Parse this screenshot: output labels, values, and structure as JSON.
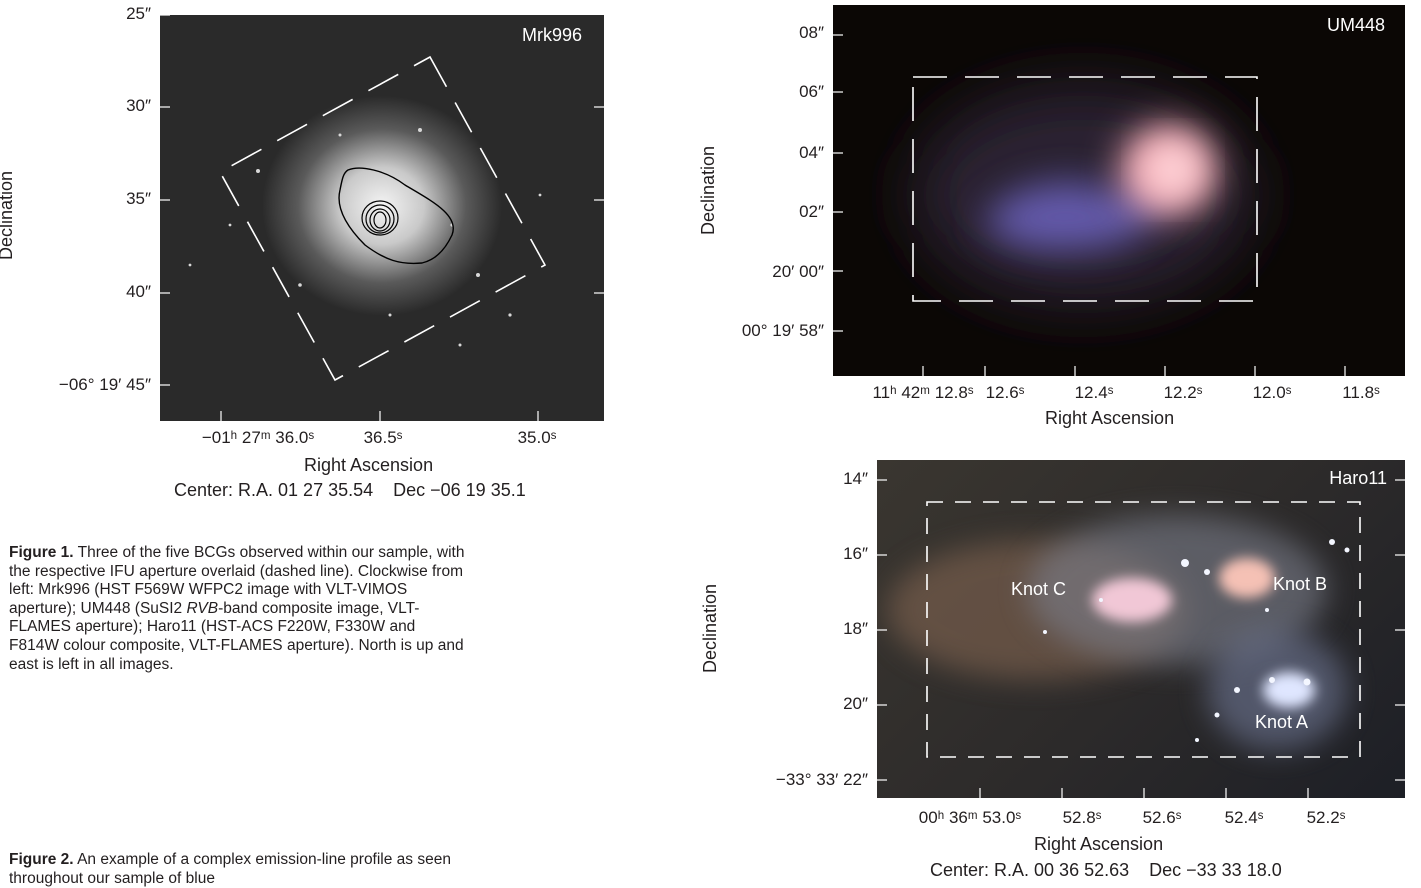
{
  "figure1": {
    "mrk996": {
      "label": "Mrk996",
      "ylabel": "Declination",
      "yticks": [
        "25″",
        "30″",
        "35″",
        "40″",
        "−06° 19′ 45″"
      ],
      "xticks": [
        "−01ʰ 27ᵐ 36.0ˢ",
        "36.5ˢ",
        "35.0ˢ"
      ],
      "xlabel": "Right Ascension",
      "center": "Center: R.A. 01 27 35.54    Dec −06 19 35.1"
    },
    "um448": {
      "label": "UM448",
      "ylabel": "Declination",
      "yticks": [
        "08″",
        "06″",
        "04″",
        "02″",
        "20′ 00″",
        "00° 19′ 58″"
      ],
      "xticks": [
        "11ʰ 42ᵐ 12.8ˢ",
        "12.6ˢ",
        "12.4ˢ",
        "12.2ˢ",
        "12.0ˢ",
        "11.8ˢ"
      ],
      "xlabel": "Right Ascension"
    },
    "haro11": {
      "label": "Haro11",
      "ylabel": "Declination",
      "yticks": [
        "14″",
        "16″",
        "18″",
        "20″",
        "−33° 33′ 22″"
      ],
      "xticks": [
        "00ʰ 36ᵐ 53.0ˢ",
        "52.8ˢ",
        "52.6ˢ",
        "52.4ˢ",
        "52.2ˢ"
      ],
      "xlabel": "Right Ascension",
      "center": "Center: R.A. 00 36 52.63    Dec −33 33 18.0",
      "knots": [
        "Knot C",
        "Knot B",
        "Knot A"
      ]
    }
  },
  "captions": {
    "fig1_label": "Figure 1.",
    "fig1_text_a": "Three of the five BCGs observed within our sample, with the respective IFU aperture overlaid (dashed line). Clockwise from left: Mrk996 (HST F569W WFPC2 image with VLT-VIMOS aperture); UM448 (SuSI2",
    "fig1_italic": "RVB",
    "fig1_text_b": "-band composite image, VLT-FLAMES aperture); Haro11 (HST-ACS F220W, F330W and F814W colour composite, VLT-FLAMES aperture). North is up and east is left in all images.",
    "fig2_label": "Figure 2.",
    "fig2_text": "An example of a complex emission-line profile as seen throughout our sample of blue"
  },
  "colors": {
    "text": "#231f20",
    "um448_red_knot": "#f6b3b8",
    "um448_blue_arm": "#7468c9"
  }
}
